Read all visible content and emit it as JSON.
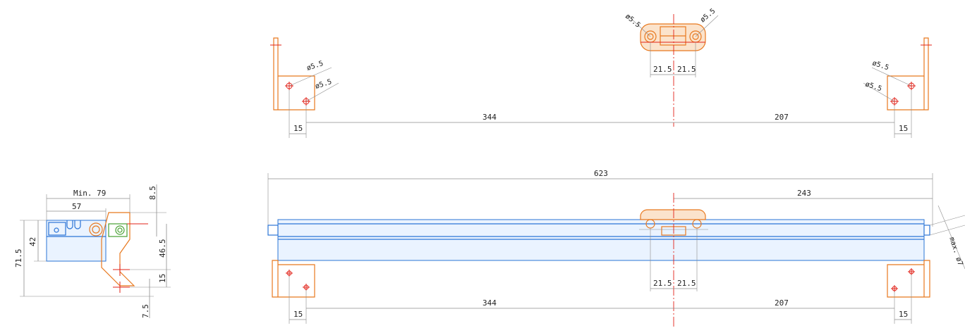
{
  "dims": {
    "d1": "ø5.5",
    "d2": "ø5.5",
    "d3": "ø5.5",
    "d4": "ø5.5",
    "d5": "ø5.5",
    "d6": "ø5.5",
    "top_left_15": "15",
    "top_344": "344",
    "top_207": "207",
    "top_right_15": "15",
    "top_21a": "21.5",
    "top_21b": "21.5",
    "overall_623": "623",
    "main_243": "243",
    "main_21a": "21.5",
    "main_21b": "21.5",
    "bottom_left_15": "15",
    "bottom_344": "344",
    "bottom_207": "207",
    "bottom_right_15": "15",
    "max_7": "max. ø7",
    "side_min79": "Min. 79",
    "side_57": "57",
    "side_85": "8.5",
    "side_42": "42",
    "side_715": "71.5",
    "side_465": "46.5",
    "side_15": "15",
    "side_75": "7.5"
  },
  "colors": {
    "bracket": "#e8791f",
    "actuator": "#2b74d6",
    "link": "#47a132",
    "centerline": "#e2231a",
    "dimension": "#8c8c8c"
  }
}
